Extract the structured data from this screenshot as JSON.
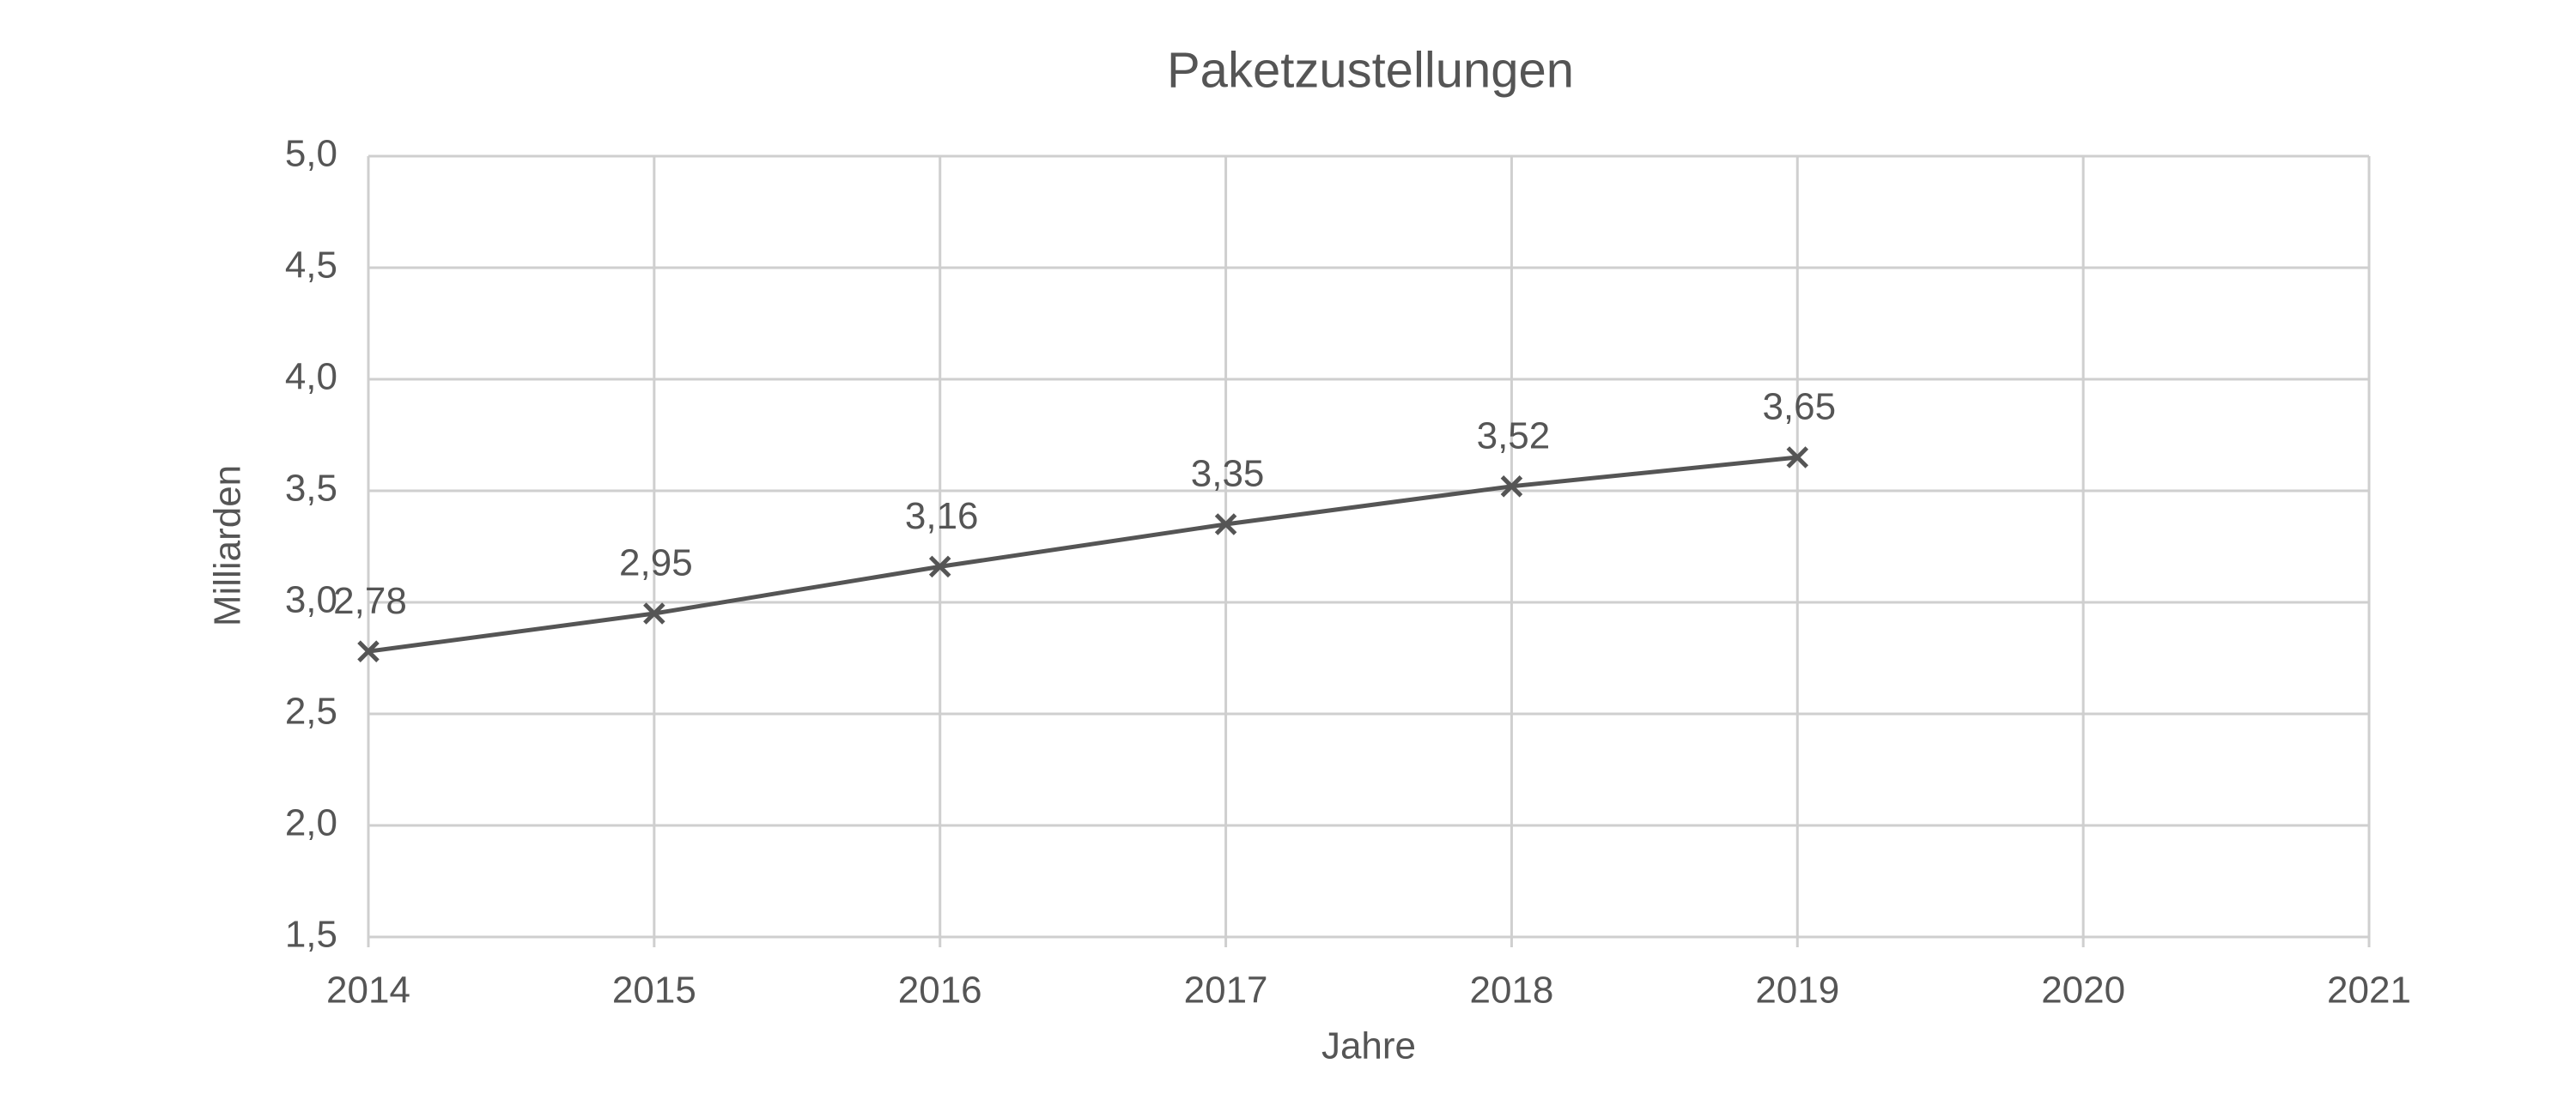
{
  "chart_data": {
    "type": "line",
    "title": "Paketzustellungen",
    "xlabel": "Jahre",
    "ylabel": "Milliarden",
    "x": [
      2014,
      2015,
      2016,
      2017,
      2018,
      2019
    ],
    "values": [
      2.78,
      2.95,
      3.16,
      3.35,
      3.52,
      3.65
    ],
    "value_labels": [
      "2,78",
      "2,95",
      "3,16",
      "3,35",
      "3,52",
      "3,65"
    ],
    "color": "#555555",
    "xlim": [
      2014,
      2021
    ],
    "xticks": [
      2014,
      2015,
      2016,
      2017,
      2018,
      2019,
      2020,
      2021
    ],
    "ylim": [
      1.5,
      5.0
    ],
    "yticks": [
      {
        "value": 1.5,
        "label": "1,5"
      },
      {
        "value": 2.0,
        "label": "2,0"
      },
      {
        "value": 2.5,
        "label": "2,5"
      },
      {
        "value": 3.0,
        "label": "3,0"
      },
      {
        "value": 3.5,
        "label": "3,5"
      },
      {
        "value": 4.0,
        "label": "4,0"
      },
      {
        "value": 4.5,
        "label": "4,5"
      },
      {
        "value": 5.0,
        "label": "5,0"
      }
    ],
    "grid": true
  }
}
